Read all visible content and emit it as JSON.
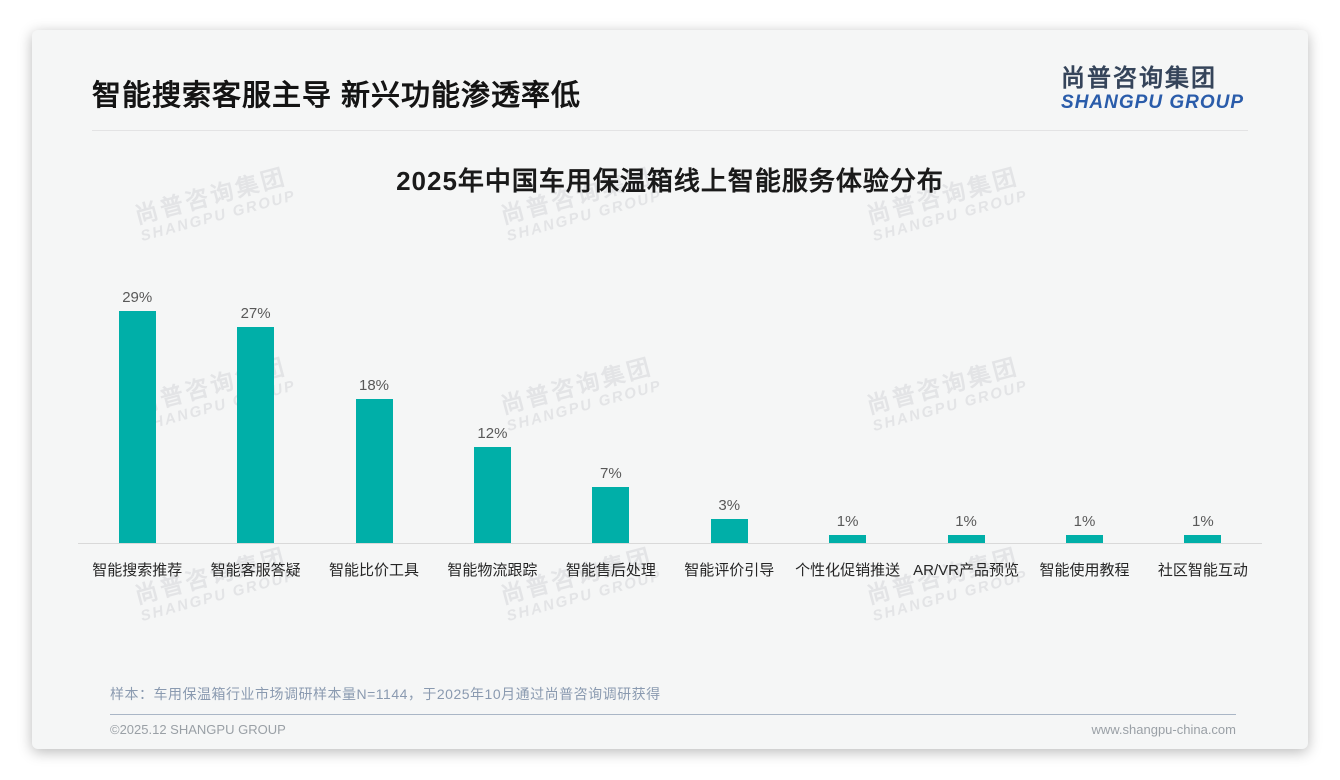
{
  "header": {
    "title": "智能搜索客服主导 新兴功能渗透率低",
    "logo": {
      "cn": "尚普咨询集团",
      "en": "SHANGPU GROUP"
    }
  },
  "chart_data": {
    "type": "bar",
    "title": "2025年中国车用保温箱线上智能服务体验分布",
    "categories": [
      "智能搜索推荐",
      "智能客服答疑",
      "智能比价工具",
      "智能物流跟踪",
      "智能售后处理",
      "智能评价引导",
      "个性化促销推送",
      "AR/VR产品预览",
      "智能使用教程",
      "社区智能互动"
    ],
    "values": [
      29,
      27,
      18,
      12,
      7,
      3,
      1,
      1,
      1,
      1
    ],
    "value_labels": [
      "29%",
      "27%",
      "18%",
      "12%",
      "7%",
      "3%",
      "1%",
      "1%",
      "1%",
      "1%"
    ],
    "unit": "%",
    "bar_color": "#00AFA8",
    "ylim": [
      0,
      30
    ],
    "grid": false,
    "legend": null,
    "xlabel": "",
    "ylabel": ""
  },
  "watermark": {
    "cn": "尚普咨询集团",
    "en": "SHANGPU GROUP"
  },
  "note": "样本：车用保温箱行业市场调研样本量N=1144，于2025年10月通过尚普咨询调研获得",
  "footer": {
    "copyright": "©2025.12 SHANGPU GROUP",
    "website": "www.shangpu-china.com"
  }
}
